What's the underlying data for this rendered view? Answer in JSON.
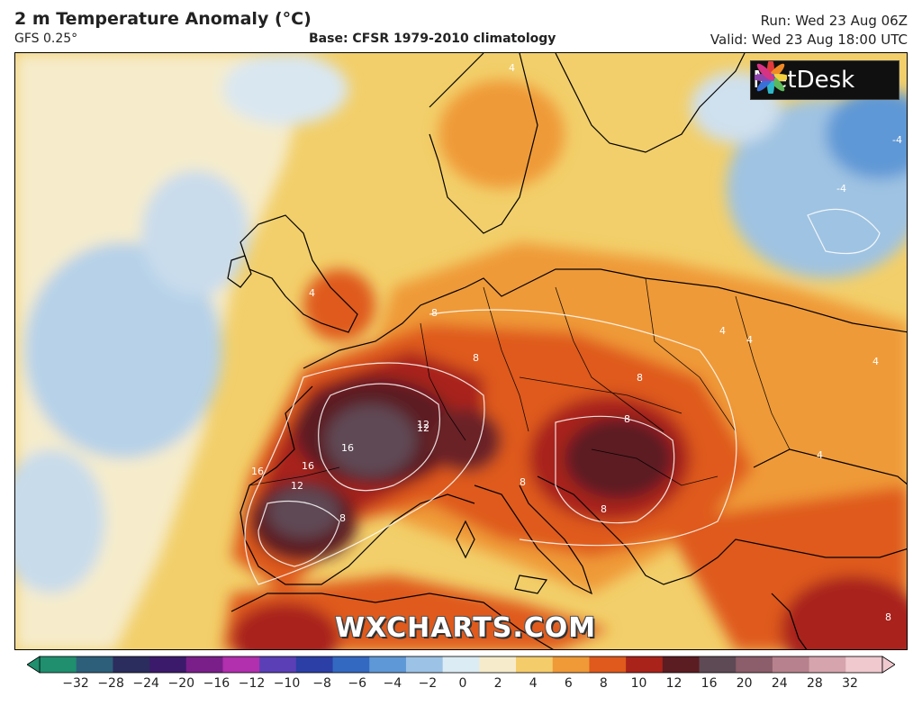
{
  "header": {
    "title": "2 m Temperature Anomaly (°C)",
    "model": "GFS 0.25°",
    "base": "Base: CFSR 1979-2010 climatology",
    "run": "Run: Wed 23 Aug 06Z",
    "valid": "Valid: Wed 23 Aug 18:00 UTC"
  },
  "branding": {
    "logo_text": "MetDesk",
    "watermark": "WXCHARTS.COM"
  },
  "colors": {
    "sea_near_normal": "#f6f1dc",
    "cool_anomaly": "#9fc3e2",
    "warm_mild": "#f5c760",
    "warm_moderate": "#ef9a37",
    "warm_strong": "#df5a1c",
    "hot": "#a9231a",
    "very_hot": "#5b1c22",
    "extreme": "#5e4a55",
    "border_line": "#000000",
    "contour_line": "#ffffff"
  },
  "contour_labels": [
    "4",
    "4",
    "4",
    "8",
    "8",
    "8",
    "8",
    "12",
    "12",
    "12",
    "16",
    "16",
    "16",
    "8",
    "4",
    "4",
    "4",
    "-4",
    "-4",
    "8",
    "8",
    "8"
  ],
  "colorbar": {
    "ticks": [
      "−32",
      "−28",
      "−24",
      "−20",
      "−16",
      "−12",
      "−10",
      "−8",
      "−6",
      "−4",
      "−2",
      "0",
      "2",
      "4",
      "6",
      "8",
      "10",
      "12",
      "16",
      "20",
      "24",
      "28",
      "32"
    ],
    "colors": [
      "#1f8f6e",
      "#2d5f7a",
      "#2b2d5e",
      "#3c1a6b",
      "#7a1f8a",
      "#b22fae",
      "#5a3fb6",
      "#2b3fa6",
      "#3469c2",
      "#5f98d6",
      "#9cc3e6",
      "#dcecf4",
      "#f6eccb",
      "#f5cc6a",
      "#ef9a37",
      "#df5a1c",
      "#a9231a",
      "#5b1c22",
      "#5e4a55",
      "#8c5d6a",
      "#b7828d",
      "#d6a4ad",
      "#f0c9cf"
    ]
  }
}
